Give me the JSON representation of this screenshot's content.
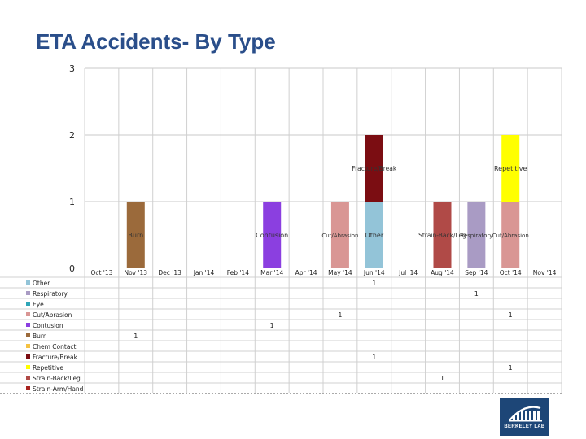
{
  "title": "ETA Accidents- By Type",
  "logo_text": "BERKELEY LAB",
  "chart_data": {
    "type": "bar",
    "stacked": true,
    "title": "ETA Accidents- By Type",
    "ylim": [
      0,
      3
    ],
    "yticks": [
      0,
      1,
      2,
      3
    ],
    "grid": true,
    "categories": [
      "Oct '13",
      "Nov '13",
      "Dec '13",
      "Jan '14",
      "Feb '14",
      "Mar '14",
      "Apr '14",
      "May '14",
      "Jun '14",
      "Jul '14",
      "Aug '14",
      "Sep '14",
      "Oct '14",
      "Nov '14"
    ],
    "series": [
      {
        "name": "Other",
        "color": "#93c4d8",
        "values": [
          0,
          0,
          0,
          0,
          0,
          0,
          0,
          0,
          1,
          0,
          0,
          0,
          0,
          0
        ],
        "labels": [
          "",
          "",
          "",
          "",
          "",
          "",
          "",
          "",
          "Other",
          "",
          "",
          "",
          "",
          ""
        ]
      },
      {
        "name": "Respiratory",
        "color": "#a99bc4",
        "values": [
          0,
          0,
          0,
          0,
          0,
          0,
          0,
          0,
          0,
          0,
          0,
          1,
          0,
          0
        ],
        "labels": [
          "",
          "",
          "",
          "",
          "",
          "",
          "",
          "",
          "",
          "",
          "",
          "Respiratory",
          "",
          ""
        ]
      },
      {
        "name": "Eye",
        "color": "#2fa6b8",
        "values": [
          0,
          0,
          0,
          0,
          0,
          0,
          0,
          0,
          0,
          0,
          0,
          0,
          0,
          0
        ],
        "labels": [
          "",
          "",
          "",
          "",
          "",
          "",
          "",
          "",
          "",
          "",
          "",
          "",
          "",
          ""
        ]
      },
      {
        "name": "Cut/Abrasion",
        "color": "#d99694",
        "values": [
          0,
          0,
          0,
          0,
          0,
          0,
          0,
          1,
          0,
          0,
          0,
          0,
          1,
          0
        ],
        "labels": [
          "",
          "",
          "",
          "",
          "",
          "",
          "",
          "Cut/Abrasion",
          "",
          "",
          "",
          "",
          "Cut/Abrasion",
          ""
        ]
      },
      {
        "name": "Contusion",
        "color": "#8b3fe0",
        "values": [
          0,
          0,
          0,
          0,
          0,
          1,
          0,
          0,
          0,
          0,
          0,
          0,
          0,
          0
        ],
        "labels": [
          "",
          "",
          "",
          "",
          "",
          "Contusion",
          "",
          "",
          "",
          "",
          "",
          "",
          "",
          ""
        ]
      },
      {
        "name": "Burn",
        "color": "#9b6a3b",
        "values": [
          0,
          1,
          0,
          0,
          0,
          0,
          0,
          0,
          0,
          0,
          0,
          0,
          0,
          0
        ],
        "labels": [
          "",
          "Burn",
          "",
          "",
          "",
          "",
          "",
          "",
          "",
          "",
          "",
          "",
          "",
          ""
        ]
      },
      {
        "name": "Chem Contact",
        "color": "#f5c242",
        "values": [
          0,
          0,
          0,
          0,
          0,
          0,
          0,
          0,
          0,
          0,
          0,
          0,
          0,
          0
        ],
        "labels": [
          "",
          "",
          "",
          "",
          "",
          "",
          "",
          "",
          "",
          "",
          "",
          "",
          "",
          ""
        ]
      },
      {
        "name": "Fracture/Break",
        "color": "#7b0d12",
        "values": [
          0,
          0,
          0,
          0,
          0,
          0,
          0,
          0,
          1,
          0,
          0,
          0,
          0,
          0
        ],
        "labels": [
          "",
          "",
          "",
          "",
          "",
          "",
          "",
          "",
          "Fracture/Break",
          "",
          "",
          "",
          "",
          ""
        ]
      },
      {
        "name": "Repetitive",
        "color": "#ffff00",
        "values": [
          0,
          0,
          0,
          0,
          0,
          0,
          0,
          0,
          0,
          0,
          0,
          0,
          1,
          0
        ],
        "labels": [
          "",
          "",
          "",
          "",
          "",
          "",
          "",
          "",
          "",
          "",
          "",
          "",
          "Repetitive",
          ""
        ]
      },
      {
        "name": "Strain-Back/Leg",
        "color": "#b04a47",
        "values": [
          0,
          0,
          0,
          0,
          0,
          0,
          0,
          0,
          0,
          0,
          1,
          0,
          0,
          0
        ],
        "labels": [
          "",
          "",
          "",
          "",
          "",
          "",
          "",
          "",
          "",
          "",
          "Strain-Back/Leg",
          "",
          "",
          ""
        ]
      },
      {
        "name": "Strain-Arm/Hand",
        "color": "#a8231f",
        "values": [
          0,
          0,
          0,
          0,
          0,
          0,
          0,
          0,
          0,
          0,
          0,
          0,
          0,
          0
        ],
        "labels": [
          "",
          "",
          "",
          "",
          "",
          "",
          "",
          "",
          "",
          "",
          "",
          "",
          "",
          ""
        ]
      }
    ]
  }
}
